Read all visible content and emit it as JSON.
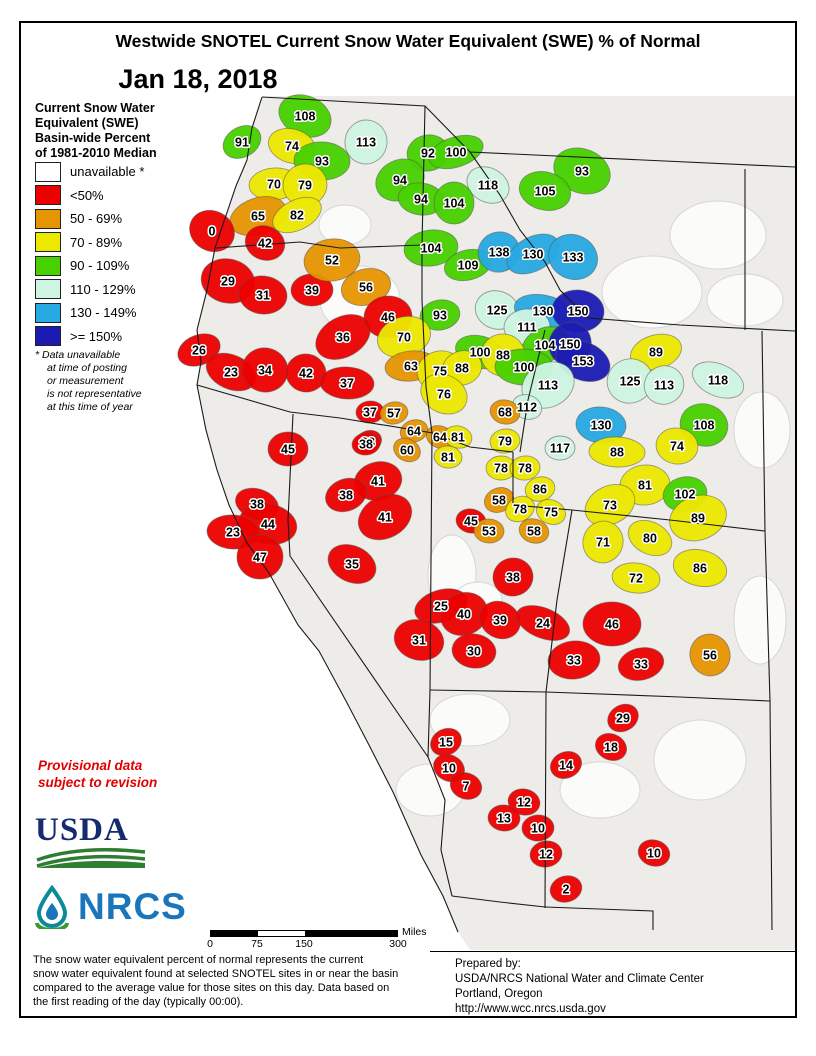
{
  "title": "Westwide SNOTEL Current Snow Water Equivalent (SWE) % of Normal",
  "date": "Jan 18, 2018",
  "legend": {
    "title_lines": [
      "Current Snow Water",
      "Equivalent (SWE)",
      "Basin-wide Percent",
      "of 1981-2010 Median"
    ],
    "items": [
      {
        "label": "unavailable *",
        "color": "#ffffff"
      },
      {
        "label": "<50%",
        "color": "#ec0000"
      },
      {
        "label": "50 - 69%",
        "color": "#e69500"
      },
      {
        "label": "70 - 89%",
        "color": "#ede800"
      },
      {
        "label": "90 - 109%",
        "color": "#47d100"
      },
      {
        "label": "110 - 129%",
        "color": "#cdf5e1"
      },
      {
        "label": "130 - 149%",
        "color": "#27a9e3"
      },
      {
        "label": ">= 150%",
        "color": "#1b1bb3"
      }
    ],
    "footnote_lines": [
      "*  Data unavailable",
      "at time of posting",
      "or measurement",
      "is not representative",
      "at this time of year"
    ]
  },
  "provisional_lines": [
    "Provisional data",
    "subject to revision"
  ],
  "logos": {
    "usda": "USDA",
    "nrcs": "NRCS"
  },
  "scalebar": {
    "ticks": [
      "0",
      "75",
      "150",
      "300"
    ],
    "unit": "Miles"
  },
  "footer": {
    "left_lines": [
      "The snow water equivalent percent of normal represents the current",
      "snow water equivalent found at selected SNOTEL sites in or near the basin",
      "compared to the average value for those sites on this day. Data based on",
      "the first reading of the day (typically 00:00)."
    ],
    "right_lines": [
      "Prepared by:",
      "USDA/NRCS National Water and Climate Center",
      "Portland, Oregon",
      "http://www.wcc.nrcs.usda.gov"
    ]
  },
  "map": {
    "thresholds": [
      50,
      70,
      90,
      110,
      130,
      150
    ],
    "basins": [
      [
        91,
        242,
        142
      ],
      [
        108,
        305,
        116
      ],
      [
        74,
        292,
        146
      ],
      [
        113,
        366,
        142
      ],
      [
        93,
        322,
        161
      ],
      [
        70,
        274,
        184
      ],
      [
        79,
        305,
        185
      ],
      [
        65,
        258,
        216
      ],
      [
        82,
        297,
        215
      ],
      [
        0,
        212,
        231
      ],
      [
        42,
        265,
        243
      ],
      [
        29,
        228,
        281
      ],
      [
        31,
        263,
        295
      ],
      [
        39,
        312,
        290
      ],
      [
        52,
        332,
        260
      ],
      [
        56,
        366,
        287
      ],
      [
        26,
        199,
        350
      ],
      [
        36,
        343,
        337
      ],
      [
        23,
        231,
        372
      ],
      [
        34,
        265,
        370
      ],
      [
        42,
        306,
        373
      ],
      [
        37,
        347,
        383
      ],
      [
        46,
        388,
        317
      ],
      [
        92,
        428,
        153
      ],
      [
        100,
        456,
        152
      ],
      [
        94,
        400,
        180
      ],
      [
        118,
        488,
        185
      ],
      [
        93,
        582,
        171
      ],
      [
        105,
        545,
        191
      ],
      [
        94,
        421,
        199
      ],
      [
        104,
        454,
        203
      ],
      [
        104,
        431,
        248
      ],
      [
        109,
        468,
        265
      ],
      [
        138,
        499,
        252
      ],
      [
        130,
        533,
        254
      ],
      [
        133,
        573,
        257
      ],
      [
        125,
        497,
        310
      ],
      [
        130,
        543,
        311
      ],
      [
        150,
        578,
        311
      ],
      [
        111,
        527,
        327
      ],
      [
        93,
        440,
        315
      ],
      [
        70,
        404,
        337
      ],
      [
        104,
        545,
        345
      ],
      [
        150,
        570,
        344
      ],
      [
        153,
        583,
        361
      ],
      [
        100,
        480,
        352
      ],
      [
        88,
        503,
        355
      ],
      [
        100,
        524,
        367
      ],
      [
        63,
        411,
        366
      ],
      [
        75,
        440,
        371
      ],
      [
        88,
        462,
        368
      ],
      [
        113,
        548,
        385
      ],
      [
        76,
        444,
        394
      ],
      [
        112,
        527,
        407
      ],
      [
        68,
        505,
        412
      ],
      [
        130,
        601,
        425
      ],
      [
        117,
        560,
        448
      ],
      [
        79,
        505,
        441
      ],
      [
        89,
        656,
        352
      ],
      [
        125,
        630,
        381
      ],
      [
        113,
        664,
        385
      ],
      [
        118,
        718,
        380
      ],
      [
        108,
        704,
        425
      ],
      [
        74,
        677,
        446
      ],
      [
        88,
        617,
        452
      ],
      [
        81,
        645,
        485
      ],
      [
        102,
        685,
        494
      ],
      [
        89,
        698,
        518
      ],
      [
        73,
        610,
        505
      ],
      [
        80,
        650,
        538
      ],
      [
        71,
        603,
        542
      ],
      [
        86,
        700,
        568
      ],
      [
        72,
        636,
        578
      ],
      [
        78,
        501,
        468
      ],
      [
        78,
        525,
        468
      ],
      [
        86,
        540,
        489
      ],
      [
        58,
        499,
        500
      ],
      [
        78,
        520,
        509
      ],
      [
        75,
        551,
        512
      ],
      [
        58,
        534,
        531
      ],
      [
        45,
        471,
        521
      ],
      [
        53,
        489,
        531
      ],
      [
        37,
        370,
        412
      ],
      [
        57,
        394,
        413
      ],
      [
        64,
        414,
        431
      ],
      [
        38,
        368,
        442
      ],
      [
        60,
        407,
        450
      ],
      [
        64,
        440,
        437
      ],
      [
        81,
        458,
        437
      ],
      [
        81,
        448,
        457
      ],
      [
        45,
        288,
        449
      ],
      [
        38,
        366,
        444
      ],
      [
        41,
        378,
        481
      ],
      [
        38,
        346,
        495
      ],
      [
        41,
        385,
        517
      ],
      [
        35,
        352,
        564
      ],
      [
        38,
        257,
        504
      ],
      [
        44,
        268,
        524
      ],
      [
        23,
        233,
        532
      ],
      [
        47,
        260,
        557
      ],
      [
        38,
        513,
        577
      ],
      [
        25,
        441,
        606
      ],
      [
        40,
        464,
        614
      ],
      [
        39,
        500,
        620
      ],
      [
        24,
        543,
        623
      ],
      [
        31,
        419,
        640
      ],
      [
        30,
        474,
        651
      ],
      [
        46,
        612,
        624
      ],
      [
        33,
        574,
        660
      ],
      [
        33,
        641,
        664
      ],
      [
        56,
        710,
        655
      ],
      [
        15,
        446,
        742
      ],
      [
        10,
        449,
        768
      ],
      [
        7,
        466,
        786
      ],
      [
        12,
        524,
        802
      ],
      [
        13,
        504,
        818
      ],
      [
        10,
        538,
        828
      ],
      [
        12,
        546,
        854
      ],
      [
        2,
        566,
        889
      ],
      [
        14,
        566,
        765
      ],
      [
        29,
        623,
        718
      ],
      [
        18,
        611,
        747
      ],
      [
        10,
        654,
        853
      ]
    ]
  }
}
